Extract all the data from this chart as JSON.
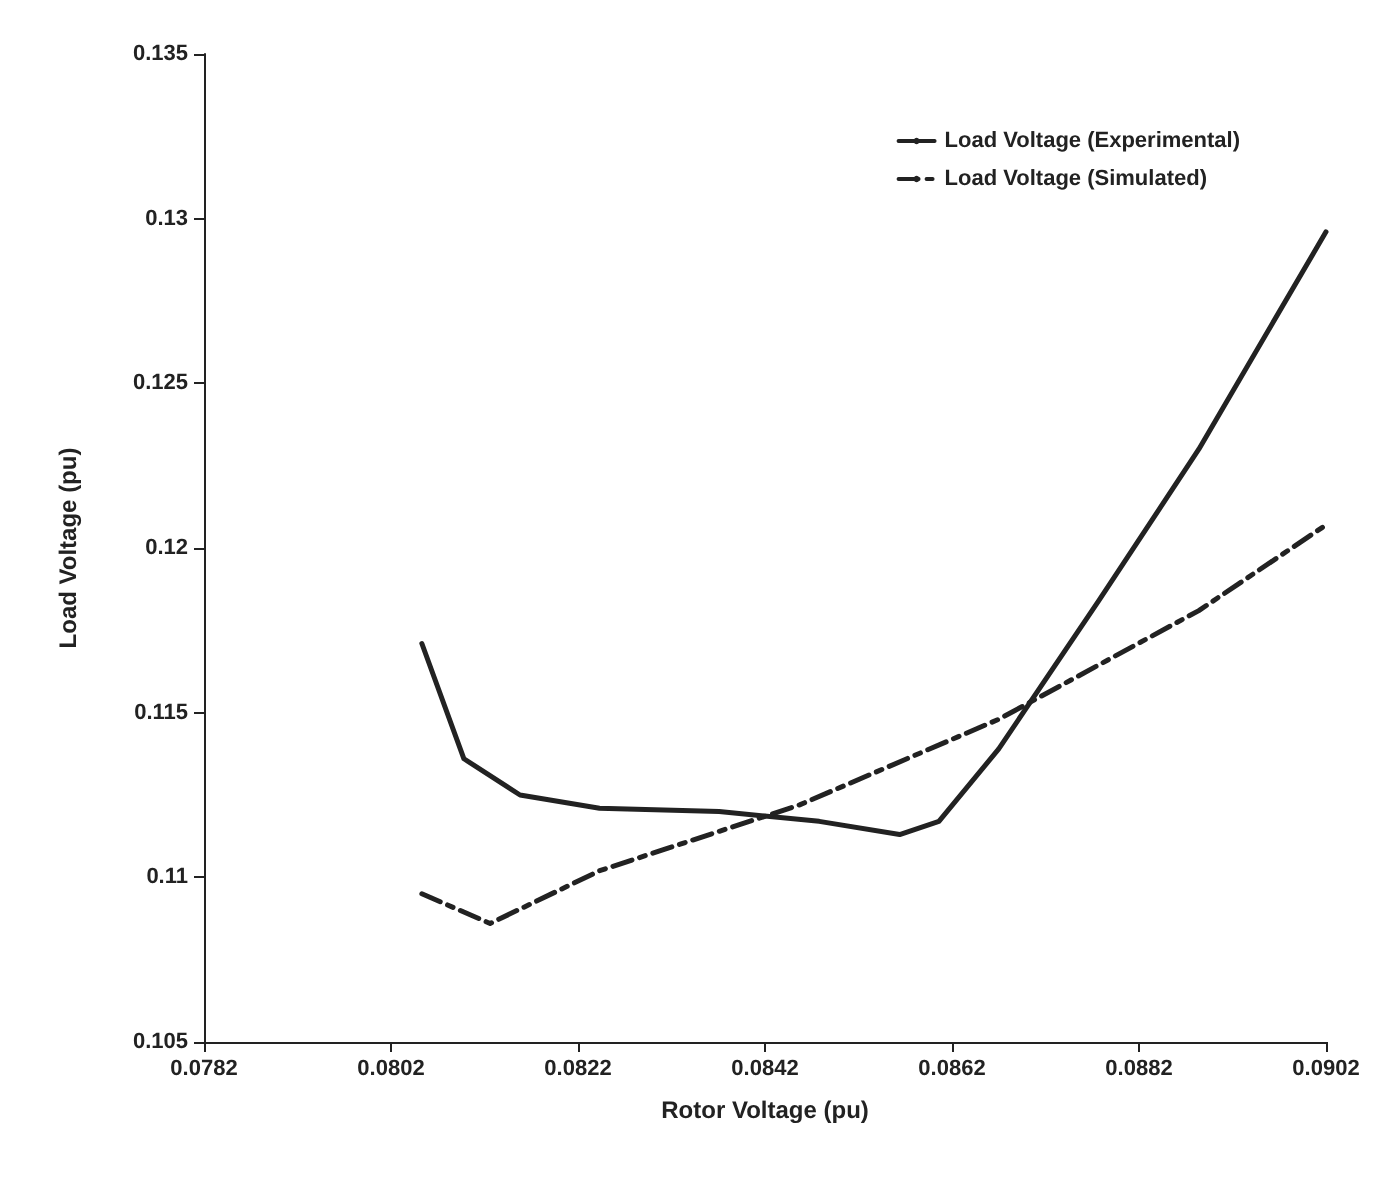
{
  "chart_data": {
    "type": "line",
    "xlabel": "Rotor Voltage (pu)",
    "ylabel": "Load Voltage (pu)",
    "xlim": [
      0.0782,
      0.0902
    ],
    "xticks": [
      0.0782,
      0.0802,
      0.0822,
      0.0842,
      0.0862,
      0.0882,
      0.0902
    ],
    "ylim": [
      0.105,
      0.135
    ],
    "yticks": [
      0.105,
      0.11,
      0.115,
      0.12,
      0.125,
      0.13,
      0.135
    ],
    "grid": false,
    "legend": "top right",
    "marker": "none",
    "series": [
      {
        "name": "Load Voltage (Experimental)",
        "color": "#222222",
        "line_style": "solid",
        "x": [
          0.08053,
          0.08098,
          0.08158,
          0.08243,
          0.08371,
          0.08478,
          0.08564,
          0.08606,
          0.0867,
          0.08777,
          0.08884,
          0.0902
        ],
        "values": [
          0.1171,
          0.1136,
          0.1125,
          0.1121,
          0.112,
          0.1117,
          0.1113,
          0.1117,
          0.1139,
          0.1184,
          0.123,
          0.1296
        ]
      },
      {
        "name": "Load Voltage (Simulated)",
        "color": "#222222",
        "line_style": "dashed",
        "x": [
          0.08053,
          0.08126,
          0.08243,
          0.08457,
          0.0867,
          0.08884,
          0.0902
        ],
        "values": [
          0.1095,
          0.1086,
          0.1102,
          0.1122,
          0.1148,
          0.1181,
          0.1207
        ]
      }
    ]
  }
}
